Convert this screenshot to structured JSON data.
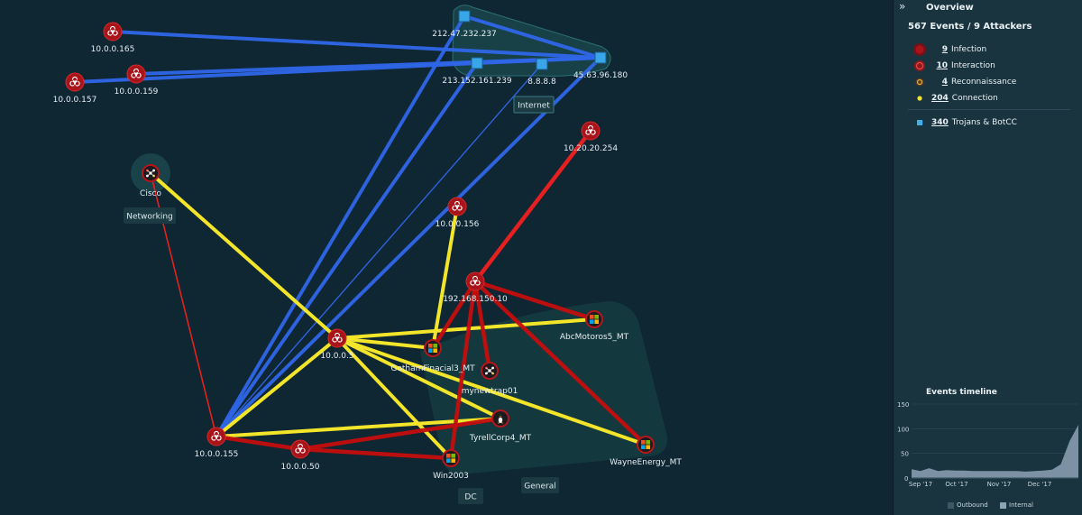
{
  "nodes": [
    {
      "id": "10.0.0.165",
      "label": "10.0.0.165",
      "type": "infection"
    },
    {
      "id": "10.0.0.159",
      "label": "10.0.0.159",
      "type": "infection"
    },
    {
      "id": "10.0.0.157",
      "label": "10.0.0.157",
      "type": "infection"
    },
    {
      "id": "212.47.232.237",
      "label": "212.47.232.237",
      "type": "trojan"
    },
    {
      "id": "213.152.161.239",
      "label": "213.152.161.239",
      "type": "trojan"
    },
    {
      "id": "8.8.8.8",
      "label": "8.8.8.8",
      "type": "trojan"
    },
    {
      "id": "45.63.96.180",
      "label": "45.63.96.180",
      "type": "trojan"
    },
    {
      "id": "10.20.20.254",
      "label": "10.20.20.254",
      "type": "infection"
    },
    {
      "id": "Cisco",
      "label": "Cisco",
      "type": "device-network"
    },
    {
      "id": "10.0.0.156",
      "label": "10.0.0.156",
      "type": "infection"
    },
    {
      "id": "192.168.150.10",
      "label": "192.168.150.10",
      "type": "infection"
    },
    {
      "id": "AbcMotoros5_MT",
      "label": "AbcMotoros5_MT",
      "type": "device-windows"
    },
    {
      "id": "10.0.0.5",
      "label": "10.0.0.5",
      "type": "infection"
    },
    {
      "id": "GothamFinacial3_MT",
      "label": "GothamFinacial3_MT",
      "type": "device-windows"
    },
    {
      "id": "mynewtrap01",
      "label": "mynewtrap01",
      "type": "device-network"
    },
    {
      "id": "TyrellCorp4_MT",
      "label": "TyrellCorp4_MT",
      "type": "device-linux"
    },
    {
      "id": "10.0.0.155",
      "label": "10.0.0.155",
      "type": "infection"
    },
    {
      "id": "10.0.0.50",
      "label": "10.0.0.50",
      "type": "infection"
    },
    {
      "id": "Win2003",
      "label": "Win2003",
      "type": "device-windows"
    },
    {
      "id": "WayneEnergy_MT",
      "label": "WayneEnergy_MT",
      "type": "device-windows"
    }
  ],
  "edges": [
    {
      "from": "10.0.0.165",
      "to": "45.63.96.180",
      "kind": "trojans"
    },
    {
      "from": "10.0.0.159",
      "to": "45.63.96.180",
      "kind": "trojans"
    },
    {
      "from": "10.0.0.157",
      "to": "213.152.161.239",
      "kind": "trojans"
    },
    {
      "from": "212.47.232.237",
      "to": "45.63.96.180",
      "kind": "trojans"
    },
    {
      "from": "213.152.161.239",
      "to": "45.63.96.180",
      "kind": "trojans"
    },
    {
      "from": "10.0.0.155",
      "to": "212.47.232.237",
      "kind": "trojans"
    },
    {
      "from": "10.0.0.155",
      "to": "213.152.161.239",
      "kind": "trojans"
    },
    {
      "from": "10.0.0.155",
      "to": "8.8.8.8",
      "kind": "trojans-thin"
    },
    {
      "from": "10.0.0.155",
      "to": "45.63.96.180",
      "kind": "trojans"
    },
    {
      "from": "10.0.0.155",
      "to": "Cisco",
      "kind": "interaction-thin"
    },
    {
      "from": "Cisco",
      "to": "10.0.0.5",
      "kind": "connection"
    },
    {
      "from": "10.0.0.5",
      "to": "AbcMotoros5_MT",
      "kind": "connection"
    },
    {
      "from": "10.0.0.5",
      "to": "GothamFinacial3_MT",
      "kind": "connection"
    },
    {
      "from": "10.0.0.5",
      "to": "TyrellCorp4_MT",
      "kind": "connection"
    },
    {
      "from": "10.0.0.5",
      "to": "WayneEnergy_MT",
      "kind": "connection"
    },
    {
      "from": "10.0.0.5",
      "to": "Win2003",
      "kind": "connection"
    },
    {
      "from": "10.0.0.5",
      "to": "10.0.0.155",
      "kind": "connection"
    },
    {
      "from": "10.0.0.156",
      "to": "GothamFinacial3_MT",
      "kind": "connection"
    },
    {
      "from": "10.0.0.155",
      "to": "TyrellCorp4_MT",
      "kind": "connection"
    },
    {
      "from": "10.20.20.254",
      "to": "192.168.150.10",
      "kind": "interaction-bright"
    },
    {
      "from": "192.168.150.10",
      "to": "AbcMotoros5_MT",
      "kind": "infection"
    },
    {
      "from": "192.168.150.10",
      "to": "GothamFinacial3_MT",
      "kind": "infection"
    },
    {
      "from": "192.168.150.10",
      "to": "mynewtrap01",
      "kind": "infection"
    },
    {
      "from": "192.168.150.10",
      "to": "WayneEnergy_MT",
      "kind": "infection"
    },
    {
      "from": "192.168.150.10",
      "to": "Win2003",
      "kind": "infection"
    },
    {
      "from": "10.0.0.155",
      "to": "10.0.0.50",
      "kind": "infection"
    },
    {
      "from": "10.0.0.50",
      "to": "TyrellCorp4_MT",
      "kind": "infection"
    },
    {
      "from": "10.0.0.50",
      "to": "Win2003",
      "kind": "infection"
    }
  ],
  "group_tags": [
    {
      "id": "internet",
      "label": "Internet"
    },
    {
      "id": "networking",
      "label": "Networking"
    },
    {
      "id": "dc",
      "label": "DC"
    },
    {
      "id": "general",
      "label": "General"
    }
  ],
  "panel": {
    "title": "Overview",
    "summary": "567 Events / 9 Attackers",
    "legend": [
      {
        "id": "infection",
        "count": "9",
        "label": "Infection",
        "color": "#b31b1b"
      },
      {
        "id": "interaction",
        "count": "10",
        "label": "Interaction",
        "color": "#c0281f"
      },
      {
        "id": "reconnaissance",
        "count": "4",
        "label": "Reconnaissance",
        "color": "#d4a23a"
      },
      {
        "id": "connection",
        "count": "204",
        "label": "Connection",
        "color": "#f1e22c"
      }
    ],
    "trojans": {
      "count": "340",
      "label": "Trojans & BotCC",
      "color": "#3fb0ef"
    }
  },
  "timeline": {
    "title": "Events timeline",
    "y_ticks": [
      "150",
      "100",
      "50",
      "0"
    ],
    "ylim": [
      0,
      150
    ],
    "x_ticks": [
      "Sep '17",
      "Oct '17",
      "Nov '17",
      "Dec '17"
    ],
    "series": [
      {
        "name": "Outbound",
        "color": "#3c5868",
        "values": [
          0,
          0,
          0,
          0,
          0,
          0,
          0,
          0,
          0,
          0,
          0,
          0,
          0,
          0,
          0,
          0,
          0,
          0,
          0,
          0
        ]
      },
      {
        "name": "Internal",
        "color": "#8ea3b6",
        "values": [
          18,
          14,
          20,
          14,
          16,
          15,
          15,
          14,
          14,
          14,
          14,
          14,
          14,
          13,
          14,
          15,
          17,
          28,
          75,
          108
        ]
      }
    ]
  },
  "colors": {
    "trojans_line": "#2f66e8",
    "connection_line": "#f3e52a",
    "infection_line": "#c50e0e",
    "interaction_line": "#e62020",
    "node_red": "#a8141a",
    "trojan_square": "#3aa6ea"
  }
}
